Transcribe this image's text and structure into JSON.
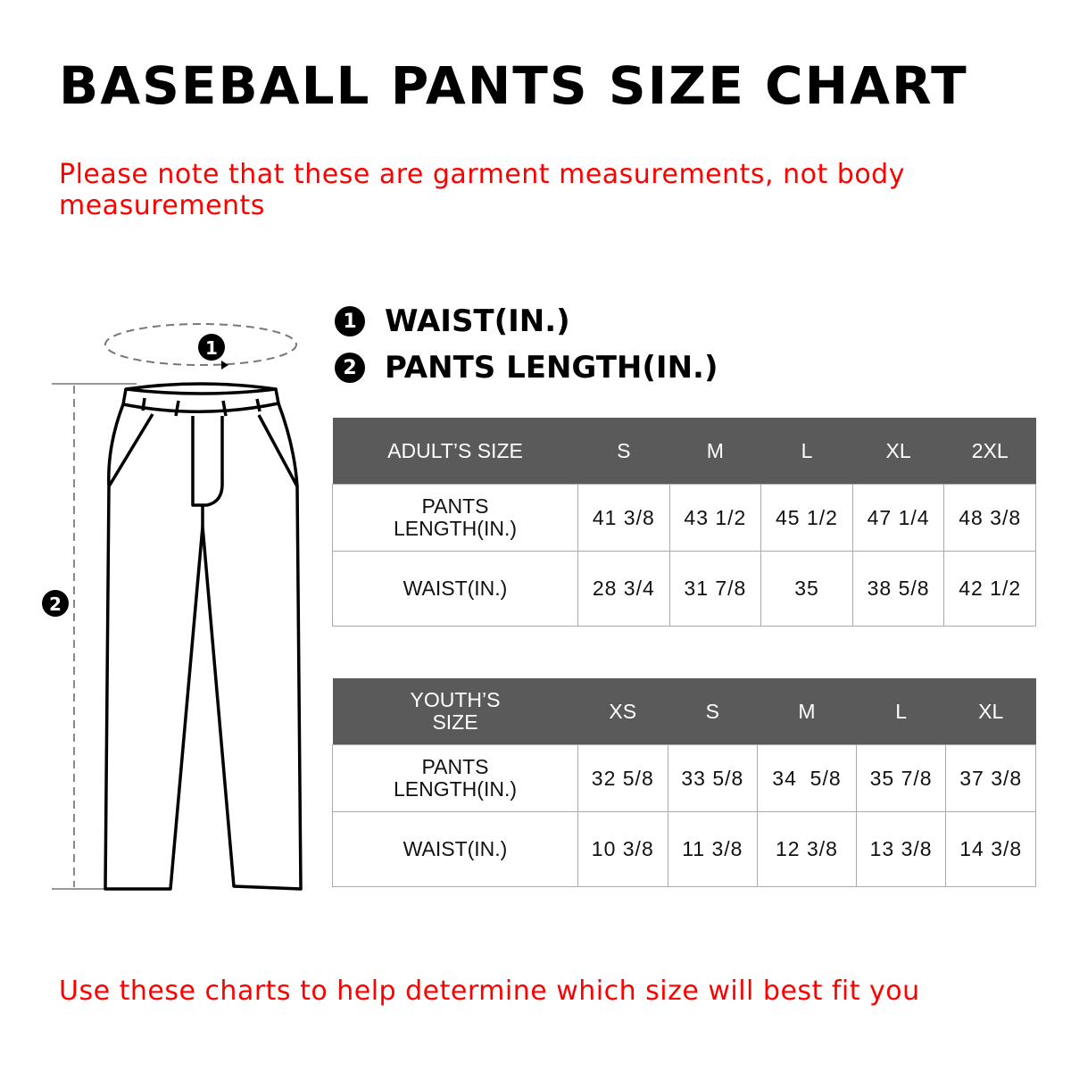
{
  "title": "BASEBALL PANTS SIZE CHART",
  "note": "Please note that these are garment measurements, not body measurements",
  "legend": [
    {
      "num": "1",
      "label": "WAIST(IN.)"
    },
    {
      "num": "2",
      "label": "PANTS LENGTH(IN.)"
    }
  ],
  "adult": {
    "header": "ADULT’S SIZE",
    "sizes": [
      "S",
      "M",
      "L",
      "XL",
      "2XL"
    ],
    "rows": [
      {
        "label": "PANTS LENGTH(IN.)",
        "values": [
          "41 3/8",
          "43 1/2",
          "45 1/2",
          "47 1/4",
          "48 3/8"
        ]
      },
      {
        "label": "WAIST(IN.)",
        "values": [
          "28 3/4",
          "31 7/8",
          "35",
          "38 5/8",
          "42 1/2"
        ]
      }
    ]
  },
  "youth": {
    "header": "YOUTH’S SIZE",
    "sizes": [
      "XS",
      "S",
      "M",
      "L",
      "XL"
    ],
    "rows": [
      {
        "label": "PANTS LENGTH(IN.)",
        "values": [
          "32 5/8",
          "33 5/8",
          "34  5/8",
          "35 7/8",
          "37 3/8"
        ]
      },
      {
        "label": "WAIST(IN.)",
        "values": [
          "10 3/8",
          "11 3/8",
          "12 3/8",
          "13 3/8",
          "14 3/8"
        ]
      }
    ]
  },
  "footer": "Use these charts to help determine which size will best fit you",
  "colors": {
    "header_bg": "#5a5a5a",
    "accent_red": "#ff0000"
  }
}
